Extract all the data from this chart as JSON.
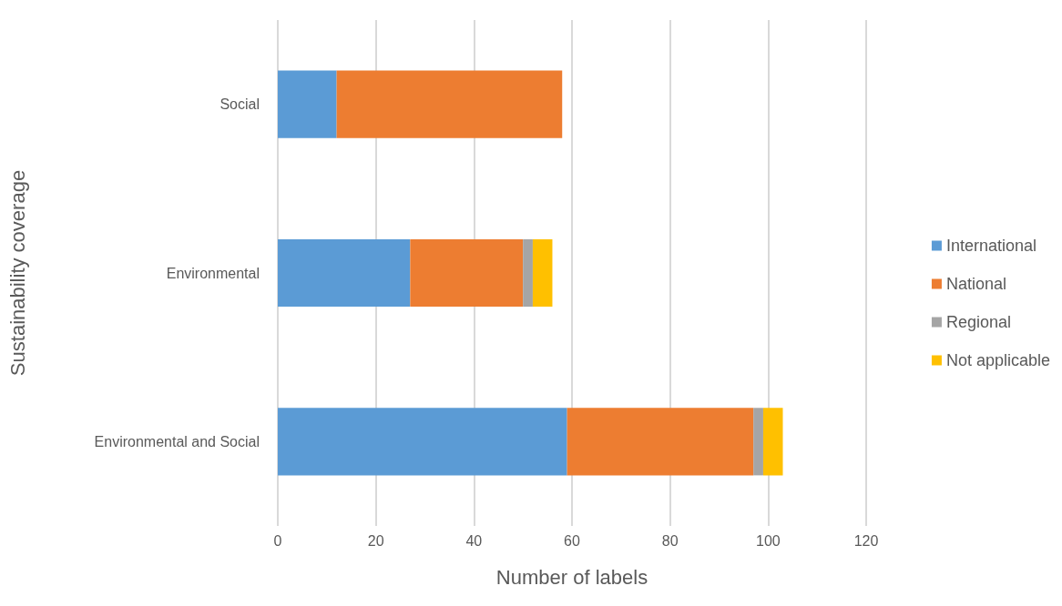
{
  "chart_data": {
    "type": "bar",
    "orientation": "horizontal",
    "stacked": true,
    "xlabel": "Number of labels",
    "ylabel": "Sustainability coverage",
    "categories": [
      "Social",
      "Environmental",
      "Environmental and Social"
    ],
    "series": [
      {
        "name": "International",
        "color": "#5b9bd5",
        "values": [
          12,
          27,
          59
        ]
      },
      {
        "name": "National",
        "color": "#ed7d31",
        "values": [
          46,
          23,
          38
        ]
      },
      {
        "name": "Regional",
        "color": "#a5a5a5",
        "values": [
          0,
          2,
          2
        ]
      },
      {
        "name": "Not applicable",
        "color": "#ffc000",
        "values": [
          0,
          4,
          4
        ]
      }
    ],
    "xlim": [
      0,
      120
    ],
    "xticks": [
      0,
      20,
      40,
      60,
      80,
      100,
      120
    ],
    "grid": "x",
    "legend": "right"
  }
}
